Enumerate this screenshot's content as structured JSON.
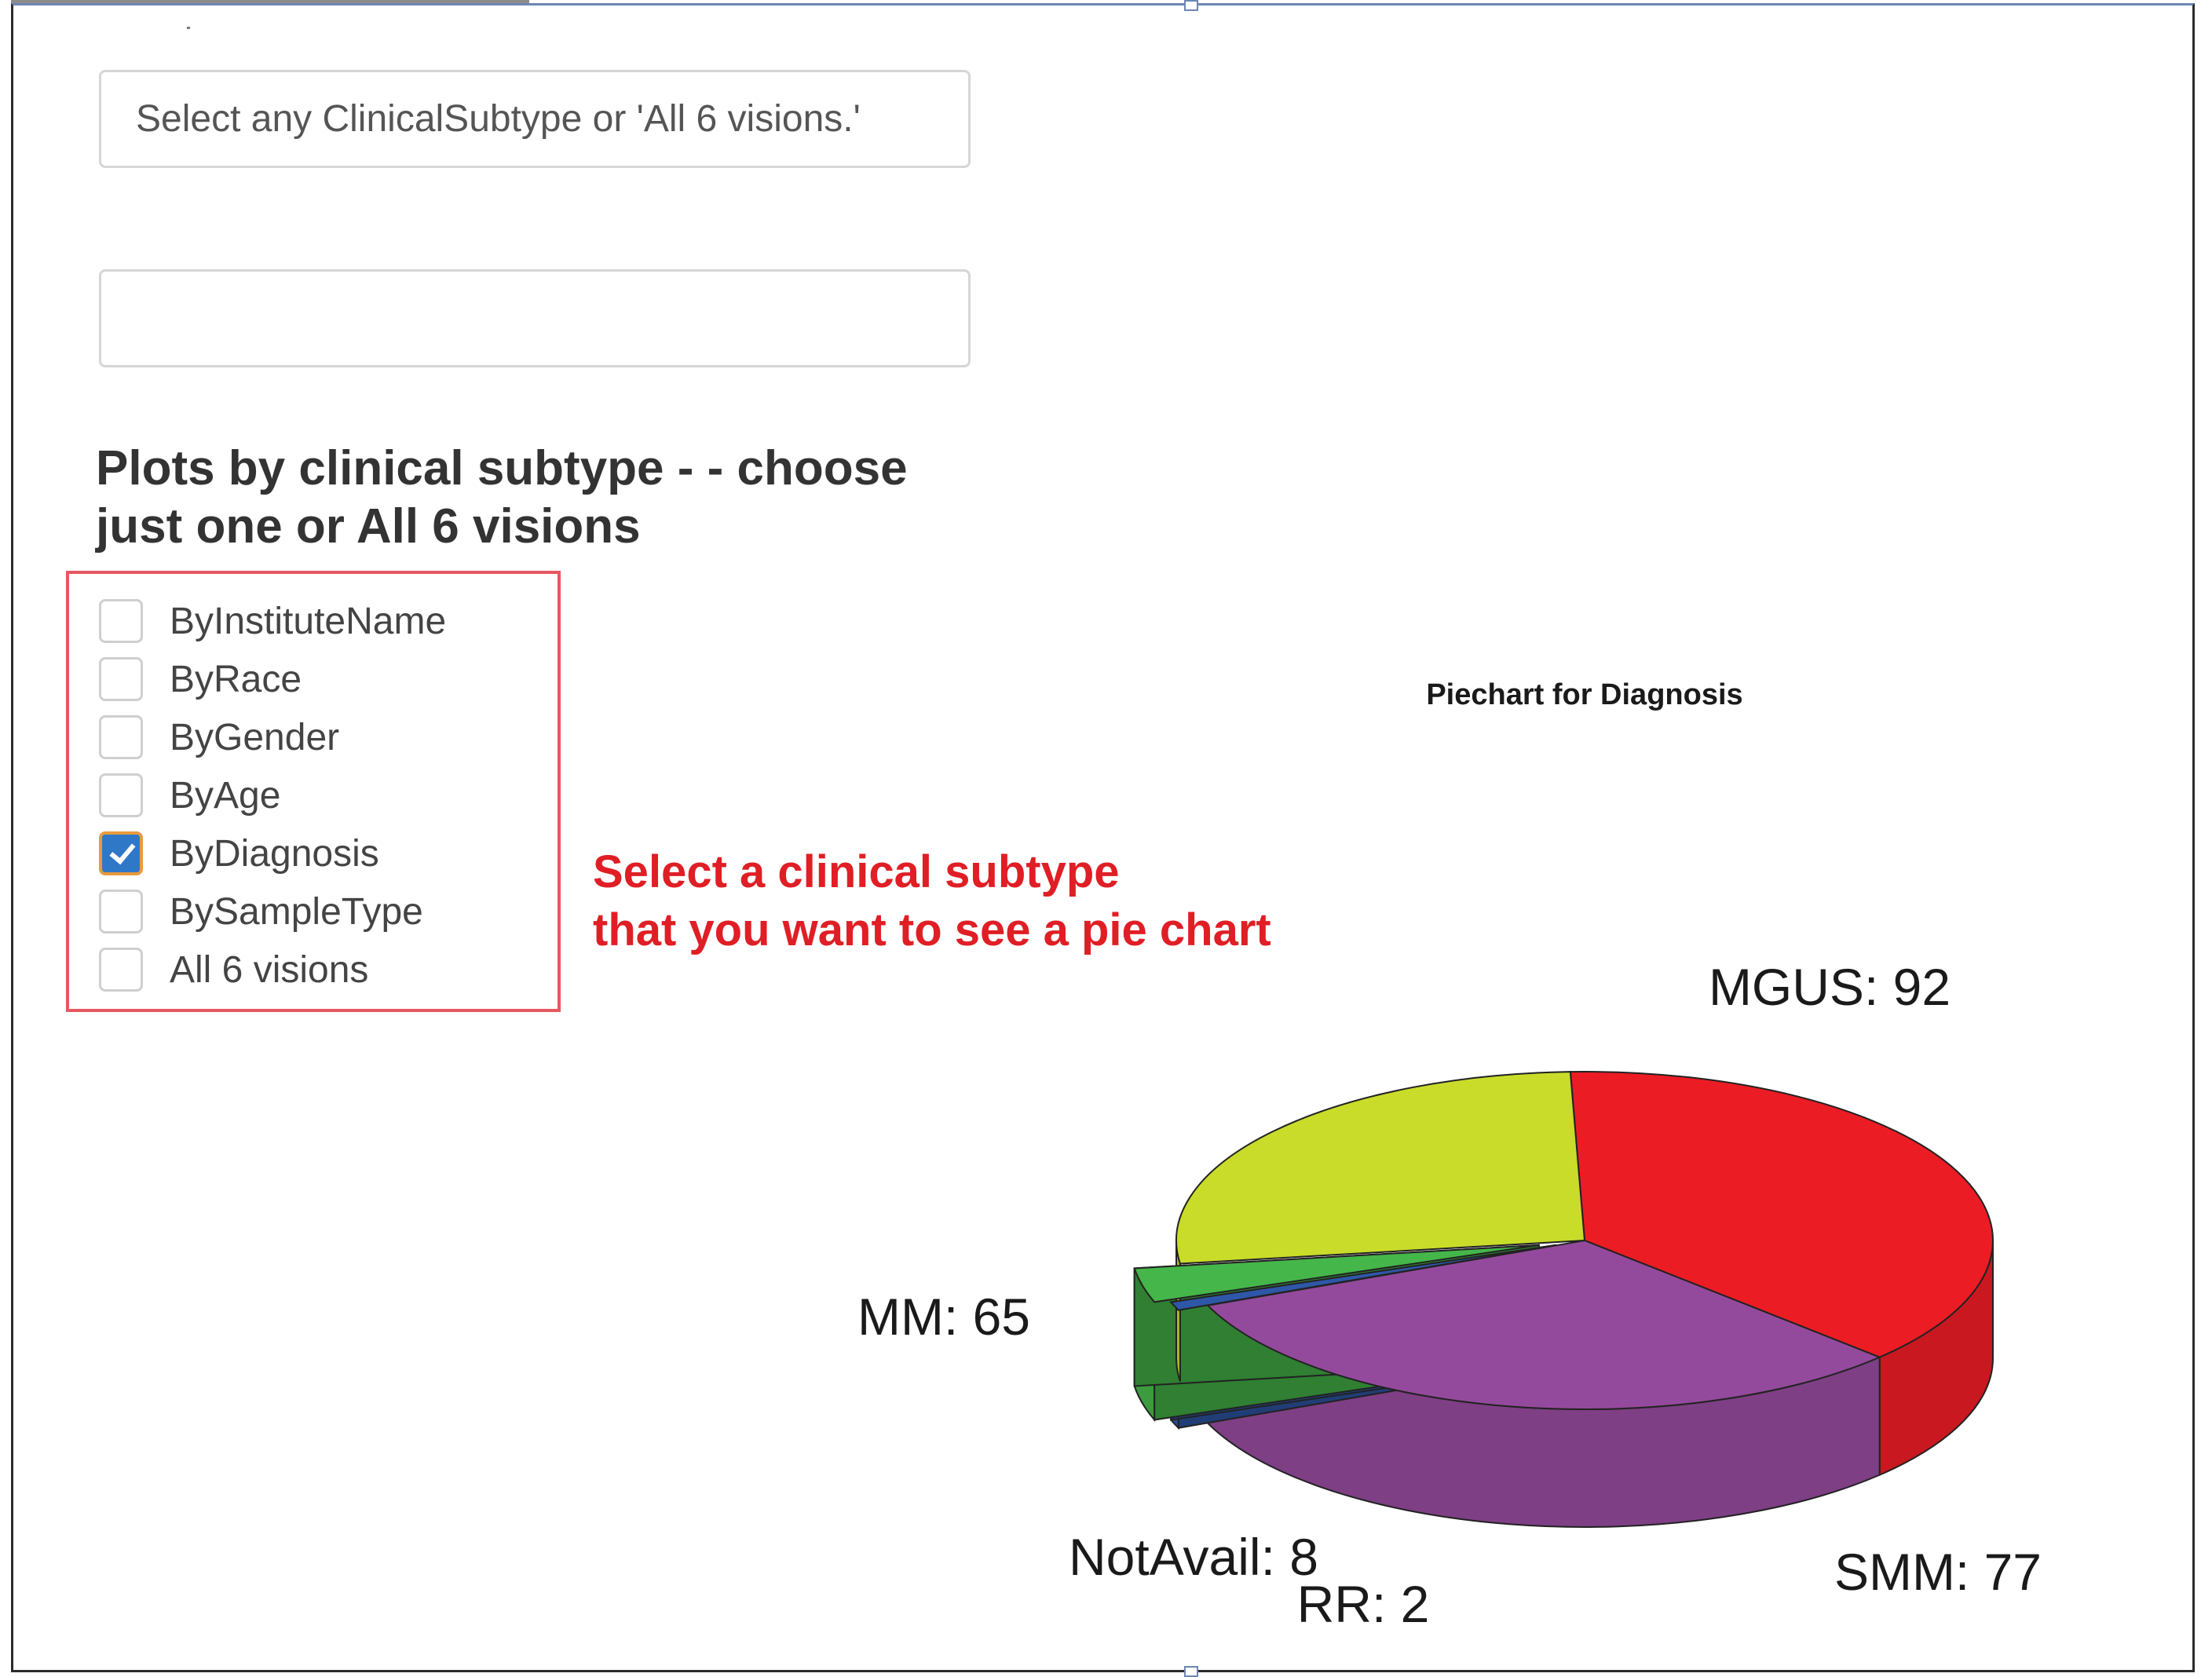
{
  "select": {
    "text": "Select any ClinicalSubtype or 'All 6 visions.'"
  },
  "text_input": {
    "value": ""
  },
  "plots": {
    "heading_line1": "Plots by clinical subtype - - choose",
    "heading_line2": "just one or All 6 visions",
    "options": [
      {
        "label": "ByInstituteName",
        "checked": false
      },
      {
        "label": "ByRace",
        "checked": false
      },
      {
        "label": "ByGender",
        "checked": false
      },
      {
        "label": "ByAge",
        "checked": false
      },
      {
        "label": "ByDiagnosis",
        "checked": true
      },
      {
        "label": "BySampleType",
        "checked": false
      },
      {
        "label": "All 6 visions",
        "checked": false
      }
    ]
  },
  "annotation": {
    "line1": "Select a clinical subtype",
    "line2": "that you want to see a pie chart",
    "color": "#e01e25"
  },
  "chart_data": {
    "type": "pie",
    "title": "Piechart for Diagnosis",
    "slices": [
      {
        "name": "MGUS",
        "value": 92,
        "label": "MGUS: 92",
        "color": "#ec1c24"
      },
      {
        "name": "SMM",
        "value": 77,
        "label": "SMM: 77",
        "color": "#944a9c"
      },
      {
        "name": "RR",
        "value": 2,
        "label": "RR: 2",
        "color": "#2f57a8"
      },
      {
        "name": "NotAvail",
        "value": 8,
        "label": "NotAvail: 8",
        "color": "#45b649"
      },
      {
        "name": "MM",
        "value": 65,
        "label": "MM: 65",
        "color": "#c9dc2a"
      }
    ]
  }
}
